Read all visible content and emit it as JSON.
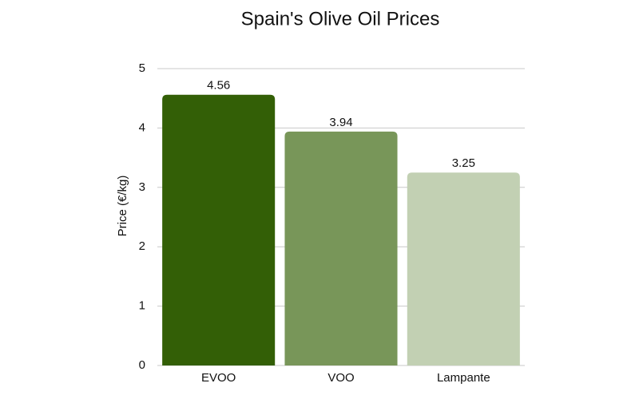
{
  "chart_data": {
    "type": "bar",
    "title": "Spain's Olive Oil Prices",
    "y_label": "Price (€/kg)",
    "categories": [
      "EVOO",
      "VOO",
      "Lampante"
    ],
    "values": [
      4.56,
      3.94,
      3.25
    ],
    "colors": [
      "#335f06",
      "#789659",
      "#c2d0b3"
    ],
    "ylim": [
      0,
      5
    ],
    "yticks": [
      0,
      1,
      2,
      3,
      4,
      5
    ],
    "grid": true
  }
}
